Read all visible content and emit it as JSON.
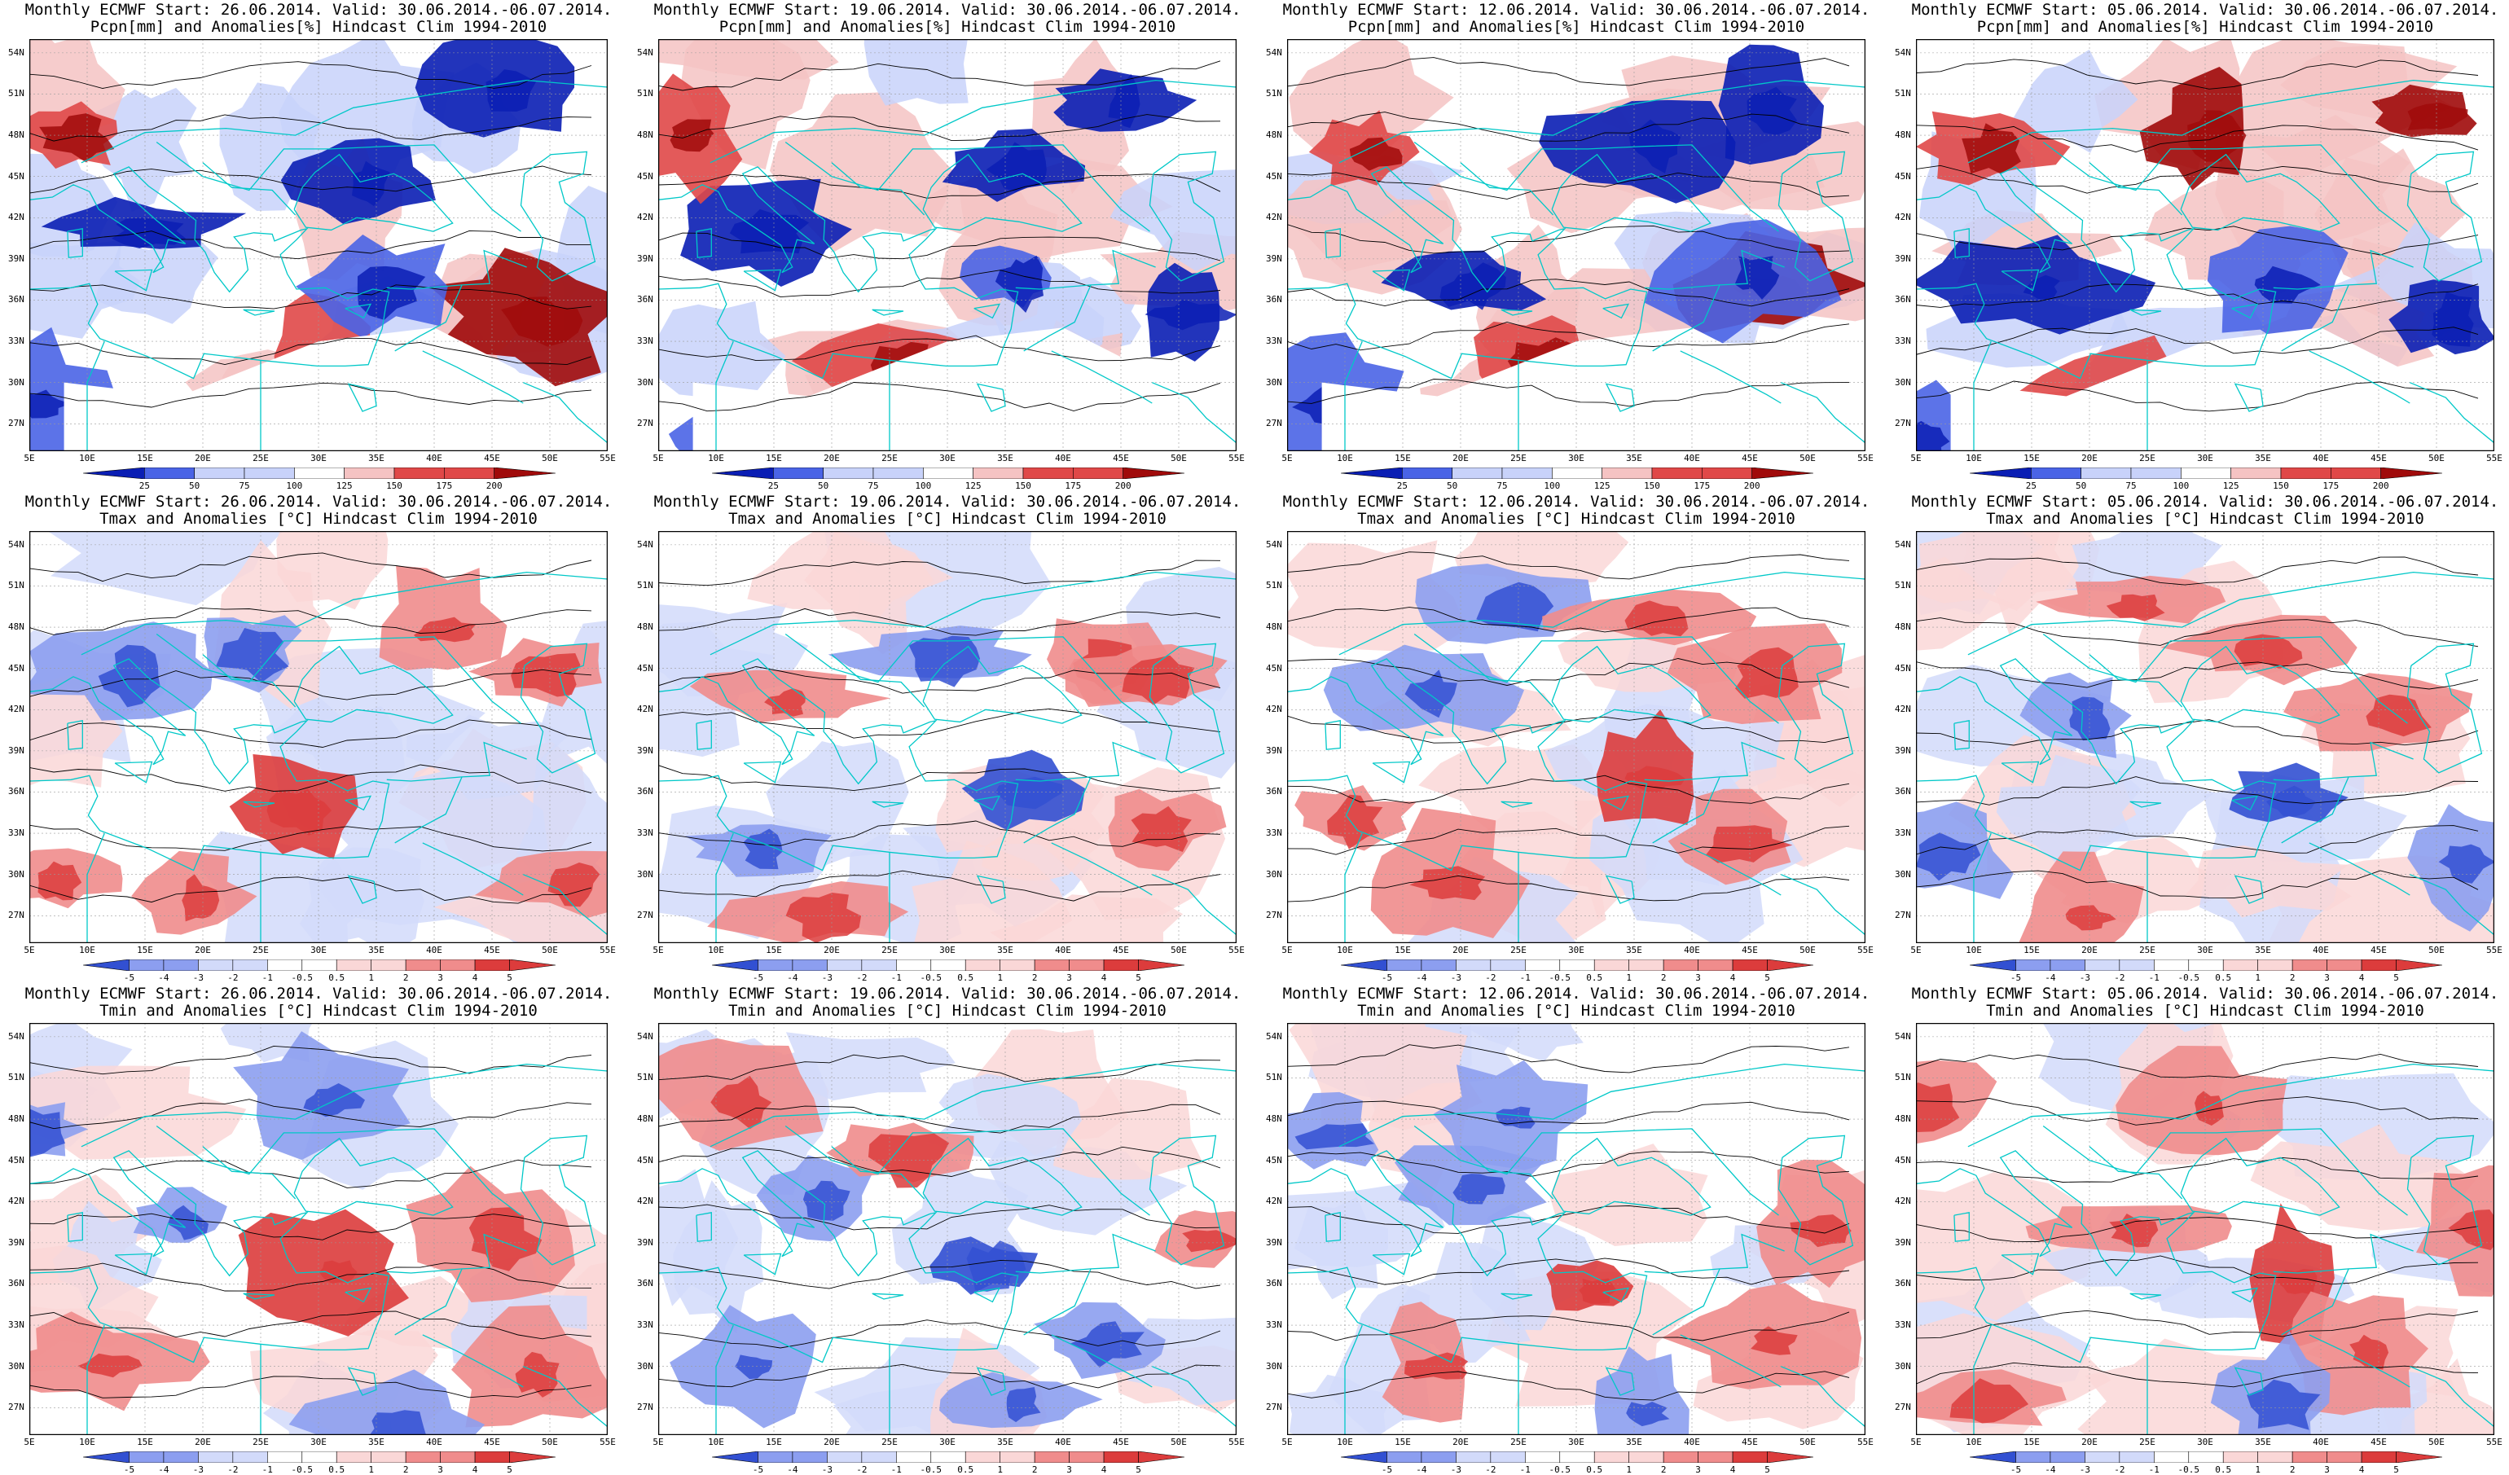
{
  "rows": [
    {
      "variable": "precipitation",
      "title_line2": "Pcpn[mm] and Anomalies[%] Hindcast Clim 1994-2010",
      "colorbar_labels": [
        "25",
        "50",
        "75",
        "100",
        "125",
        "150",
        "175",
        "200"
      ],
      "colors": {
        "strong_neg": "#0a1eb4",
        "neg": "#4a64e6",
        "weak_neg": "#c8d2fa",
        "weak_pos": "#f5c3c3",
        "pos": "#e04848",
        "strong_pos": "#a00a0a"
      }
    },
    {
      "variable": "tmax",
      "title_line2": "Tmax and Anomalies [°C] Hindcast Clim 1994-2010",
      "colorbar_labels": [
        "-5",
        "-4",
        "-3",
        "-2",
        "-1",
        "-0.5",
        "0.5",
        "1",
        "2",
        "3",
        "4",
        "5"
      ],
      "colors": {
        "strong_neg": "#3250d2",
        "neg": "#8c9ef0",
        "weak_neg": "#d2dafa",
        "weak_pos": "#fad7d7",
        "pos": "#f08c8c",
        "strong_pos": "#dc3c3c"
      }
    },
    {
      "variable": "tmin",
      "title_line2": "Tmin and Anomalies [°C] Hindcast Clim 1994-2010",
      "colorbar_labels": [
        "-5",
        "-4",
        "-3",
        "-2",
        "-1",
        "-0.5",
        "0.5",
        "1",
        "2",
        "3",
        "4",
        "5"
      ],
      "colors": {
        "strong_neg": "#3250d2",
        "neg": "#8c9ef0",
        "weak_neg": "#d2dafa",
        "weak_pos": "#fad7d7",
        "pos": "#f08c8c",
        "strong_pos": "#dc3c3c"
      }
    }
  ],
  "columns": [
    {
      "title_line1": "Monthly ECMWF Start: 26.06.2014. Valid: 30.06.2014.-06.07.2014."
    },
    {
      "title_line1": "Monthly ECMWF Start: 19.06.2014. Valid: 30.06.2014.-06.07.2014."
    },
    {
      "title_line1": "Monthly ECMWF Start: 12.06.2014. Valid: 30.06.2014.-06.07.2014."
    },
    {
      "title_line1": "Monthly ECMWF Start: 05.06.2014. Valid: 30.06.2014.-06.07.2014."
    }
  ],
  "axes": {
    "lat_labels": [
      "54N",
      "51N",
      "48N",
      "45N",
      "42N",
      "39N",
      "36N",
      "33N",
      "30N",
      "27N"
    ],
    "lon_labels": [
      "5E",
      "10E",
      "15E",
      "20E",
      "25E",
      "30E",
      "35E",
      "40E",
      "45E",
      "50E",
      "55E"
    ],
    "lat_range": [
      25,
      55
    ],
    "lon_range": [
      5,
      55
    ],
    "grid": "dotted",
    "coastline_color": "#00c8c8",
    "contour_color": "#000000"
  }
}
